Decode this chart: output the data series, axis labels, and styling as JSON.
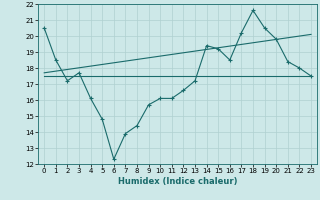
{
  "xlabel": "Humidex (Indice chaleur)",
  "ylabel": "",
  "background_color": "#cde8e8",
  "grid_color": "#b0d0d0",
  "line_color": "#1a6b6b",
  "xlim": [
    -0.5,
    23.5
  ],
  "ylim": [
    12,
    22
  ],
  "xticks": [
    0,
    1,
    2,
    3,
    4,
    5,
    6,
    7,
    8,
    9,
    10,
    11,
    12,
    13,
    14,
    15,
    16,
    17,
    18,
    19,
    20,
    21,
    22,
    23
  ],
  "yticks": [
    12,
    13,
    14,
    15,
    16,
    17,
    18,
    19,
    20,
    21,
    22
  ],
  "line1_x": [
    0,
    1,
    2,
    3,
    4,
    5,
    6,
    7,
    8,
    9,
    10,
    11,
    12,
    13,
    14,
    15,
    16,
    17,
    18,
    19,
    20,
    21,
    22,
    23
  ],
  "line1_y": [
    20.5,
    18.5,
    17.2,
    17.7,
    16.1,
    14.8,
    12.3,
    13.9,
    14.4,
    15.7,
    16.1,
    16.1,
    16.6,
    17.2,
    19.4,
    19.2,
    18.5,
    20.2,
    21.6,
    20.5,
    19.8,
    18.4,
    18.0,
    17.5
  ],
  "line2_x": [
    0,
    23
  ],
  "line2_y": [
    17.5,
    17.5
  ],
  "line3_x": [
    0,
    23
  ],
  "line3_y": [
    17.7,
    20.1
  ]
}
